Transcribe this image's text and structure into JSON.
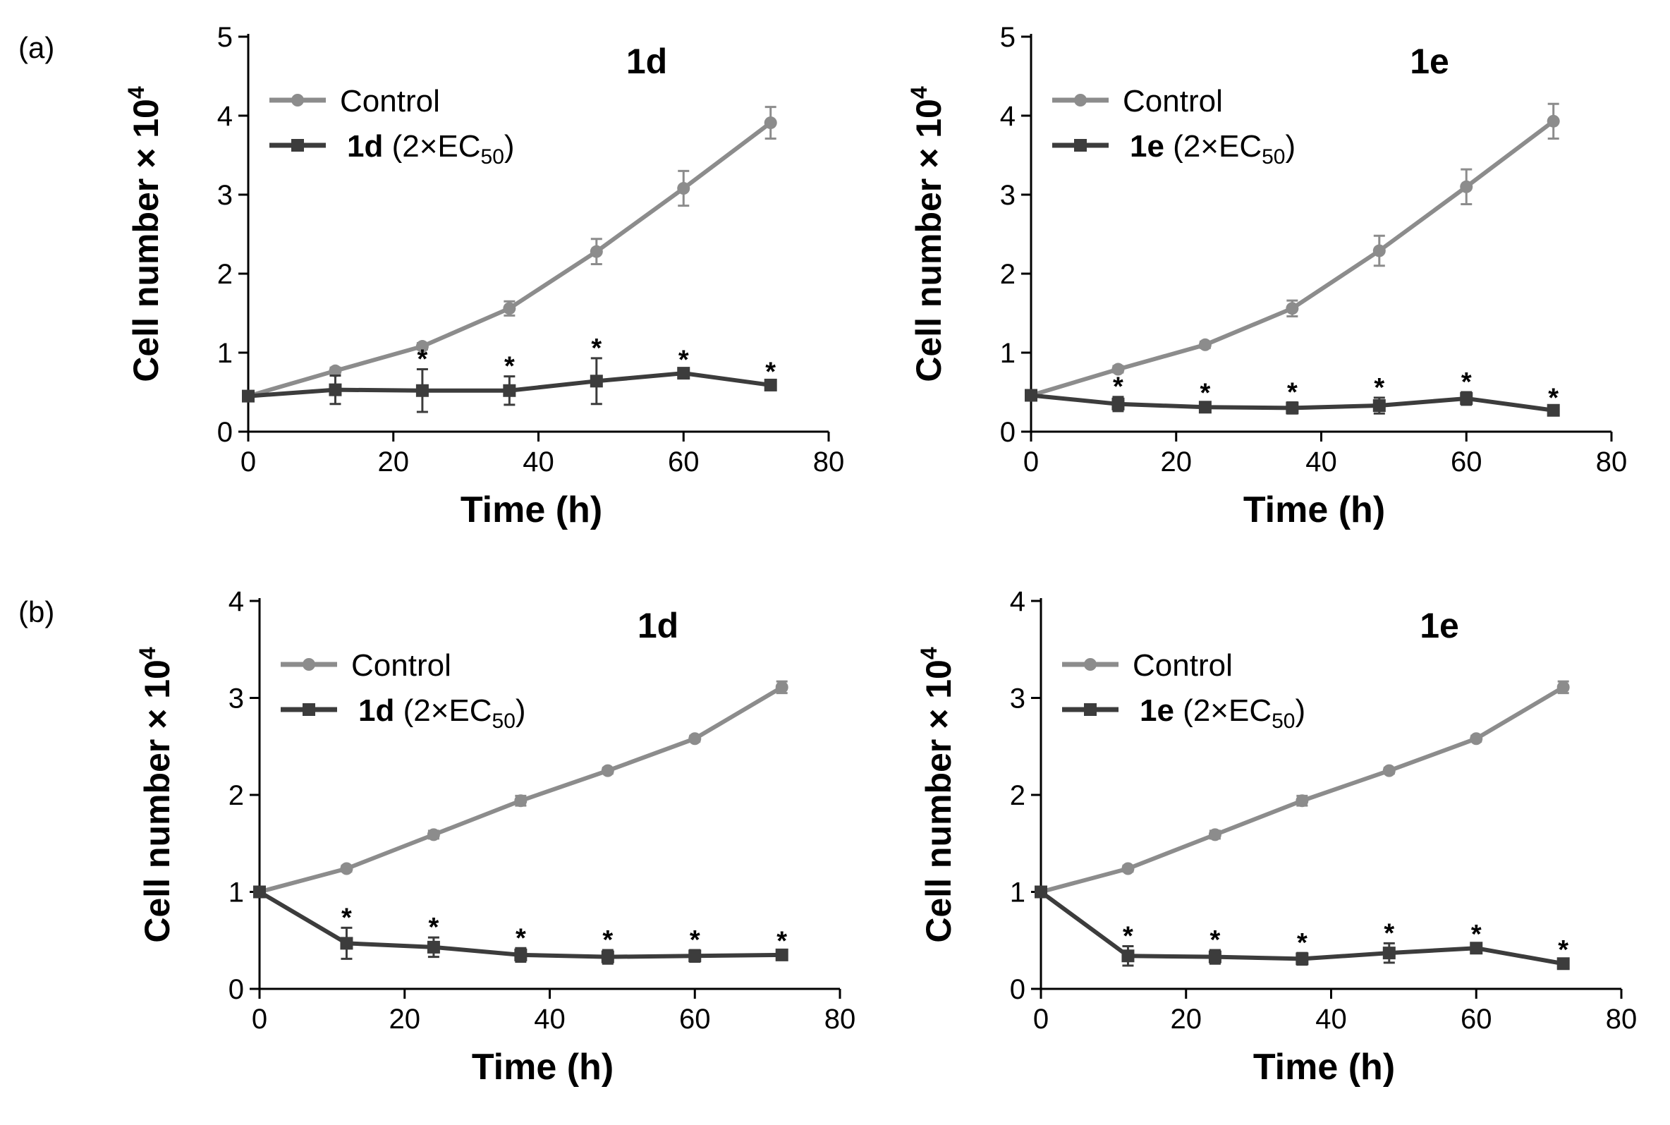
{
  "figure": {
    "panel_labels": [
      "(a)",
      "(b)"
    ],
    "colors": {
      "control": "#8c8c8c",
      "treated": "#3c3c3c",
      "axis": "#000000"
    }
  },
  "chart_data": [
    {
      "type": "line",
      "row_label": "(a)",
      "title": "1d",
      "xlabel": "Time (h)",
      "ylabel": "Cell number × 10",
      "ylabel_sup": "4",
      "xlim": [
        0,
        80
      ],
      "ylim": [
        0,
        5
      ],
      "xticks": [
        0,
        20,
        40,
        60,
        80
      ],
      "yticks": [
        0,
        1,
        2,
        3,
        4,
        5
      ],
      "legend_position": "top-left",
      "series": [
        {
          "name": "Control",
          "legend_label": "Control",
          "marker": "circle",
          "x": [
            0,
            12,
            24,
            36,
            48,
            60,
            72
          ],
          "values": [
            0.45,
            0.77,
            1.08,
            1.56,
            2.28,
            3.08,
            3.91
          ],
          "errors": [
            0.03,
            0.04,
            0.04,
            0.09,
            0.16,
            0.22,
            0.2
          ]
        },
        {
          "name": "1d (2×EC50)",
          "legend_bold": "1d",
          "legend_rest": " (2×EC",
          "legend_sub": "50",
          "legend_tail": ")",
          "marker": "square",
          "x": [
            0,
            12,
            24,
            36,
            48,
            60,
            72
          ],
          "values": [
            0.45,
            0.53,
            0.52,
            0.52,
            0.64,
            0.74,
            0.59
          ],
          "errors": [
            0.06,
            0.18,
            0.27,
            0.18,
            0.29,
            0.04,
            0.04
          ],
          "significance": [
            "",
            "",
            "*",
            "*",
            "*",
            "*",
            "*"
          ]
        }
      ]
    },
    {
      "type": "line",
      "row_label": "",
      "title": "1e",
      "xlabel": "Time (h)",
      "ylabel": "Cell number × 10",
      "ylabel_sup": "4",
      "xlim": [
        0,
        80
      ],
      "ylim": [
        0,
        5
      ],
      "xticks": [
        0,
        20,
        40,
        60,
        80
      ],
      "yticks": [
        0,
        1,
        2,
        3,
        4,
        5
      ],
      "legend_position": "top-left",
      "series": [
        {
          "name": "Control",
          "legend_label": "Control",
          "marker": "circle",
          "x": [
            0,
            12,
            24,
            36,
            48,
            60,
            72
          ],
          "values": [
            0.46,
            0.79,
            1.1,
            1.56,
            2.29,
            3.1,
            3.93
          ],
          "errors": [
            0.03,
            0.04,
            0.04,
            0.1,
            0.19,
            0.22,
            0.22
          ]
        },
        {
          "name": "1e (2×EC50)",
          "legend_bold": "1e",
          "legend_rest": " (2×EC",
          "legend_sub": "50",
          "legend_tail": ")",
          "marker": "square",
          "x": [
            0,
            12,
            24,
            36,
            48,
            60,
            72
          ],
          "values": [
            0.46,
            0.35,
            0.31,
            0.3,
            0.33,
            0.42,
            0.27
          ],
          "errors": [
            0.04,
            0.09,
            0.05,
            0.07,
            0.1,
            0.08,
            0.03
          ],
          "significance": [
            "",
            "*",
            "*",
            "*",
            "*",
            "*",
            "*"
          ]
        }
      ]
    },
    {
      "type": "line",
      "row_label": "(b)",
      "title": "1d",
      "xlabel": "Time (h)",
      "ylabel": "Cell number × 10",
      "ylabel_sup": "4",
      "xlim": [
        0,
        80
      ],
      "ylim": [
        0,
        4
      ],
      "xticks": [
        0,
        20,
        40,
        60,
        80
      ],
      "yticks": [
        0,
        1,
        2,
        3,
        4
      ],
      "legend_position": "top-left",
      "series": [
        {
          "name": "Control",
          "legend_label": "Control",
          "marker": "circle",
          "x": [
            0,
            12,
            24,
            36,
            48,
            60,
            72
          ],
          "values": [
            1.0,
            1.24,
            1.59,
            1.94,
            2.25,
            2.58,
            3.11
          ],
          "errors": [
            0.03,
            0.03,
            0.04,
            0.05,
            0.03,
            0.03,
            0.06
          ]
        },
        {
          "name": "1d (2×EC50)",
          "legend_bold": "1d",
          "legend_rest": " (2×EC",
          "legend_sub": "50",
          "legend_tail": ")",
          "marker": "square",
          "x": [
            0,
            12,
            24,
            36,
            48,
            60,
            72
          ],
          "values": [
            1.0,
            0.47,
            0.43,
            0.35,
            0.33,
            0.34,
            0.35
          ],
          "errors": [
            0.03,
            0.16,
            0.1,
            0.07,
            0.07,
            0.06,
            0.04
          ],
          "significance": [
            "",
            "*",
            "*",
            "*",
            "*",
            "*",
            "*"
          ]
        }
      ]
    },
    {
      "type": "line",
      "row_label": "",
      "title": "1e",
      "xlabel": "Time (h)",
      "ylabel": "Cell number × 10",
      "ylabel_sup": "4",
      "xlim": [
        0,
        80
      ],
      "ylim": [
        0,
        4
      ],
      "xticks": [
        0,
        20,
        40,
        60,
        80
      ],
      "yticks": [
        0,
        1,
        2,
        3,
        4
      ],
      "legend_position": "top-left",
      "series": [
        {
          "name": "Control",
          "legend_label": "Control",
          "marker": "circle",
          "x": [
            0,
            12,
            24,
            36,
            48,
            60,
            72
          ],
          "values": [
            1.0,
            1.24,
            1.59,
            1.94,
            2.25,
            2.58,
            3.11
          ],
          "errors": [
            0.03,
            0.03,
            0.04,
            0.05,
            0.03,
            0.03,
            0.06
          ]
        },
        {
          "name": "1e (2×EC50)",
          "legend_bold": "1e",
          "legend_rest": " (2×EC",
          "legend_sub": "50",
          "legend_tail": ")",
          "marker": "square",
          "x": [
            0,
            12,
            24,
            36,
            48,
            60,
            72
          ],
          "values": [
            1.0,
            0.34,
            0.33,
            0.31,
            0.37,
            0.42,
            0.26
          ],
          "errors": [
            0.03,
            0.1,
            0.07,
            0.06,
            0.1,
            0.04,
            0.04
          ],
          "significance": [
            "",
            "*",
            "*",
            "*",
            "*",
            "*",
            "*"
          ]
        }
      ]
    }
  ]
}
